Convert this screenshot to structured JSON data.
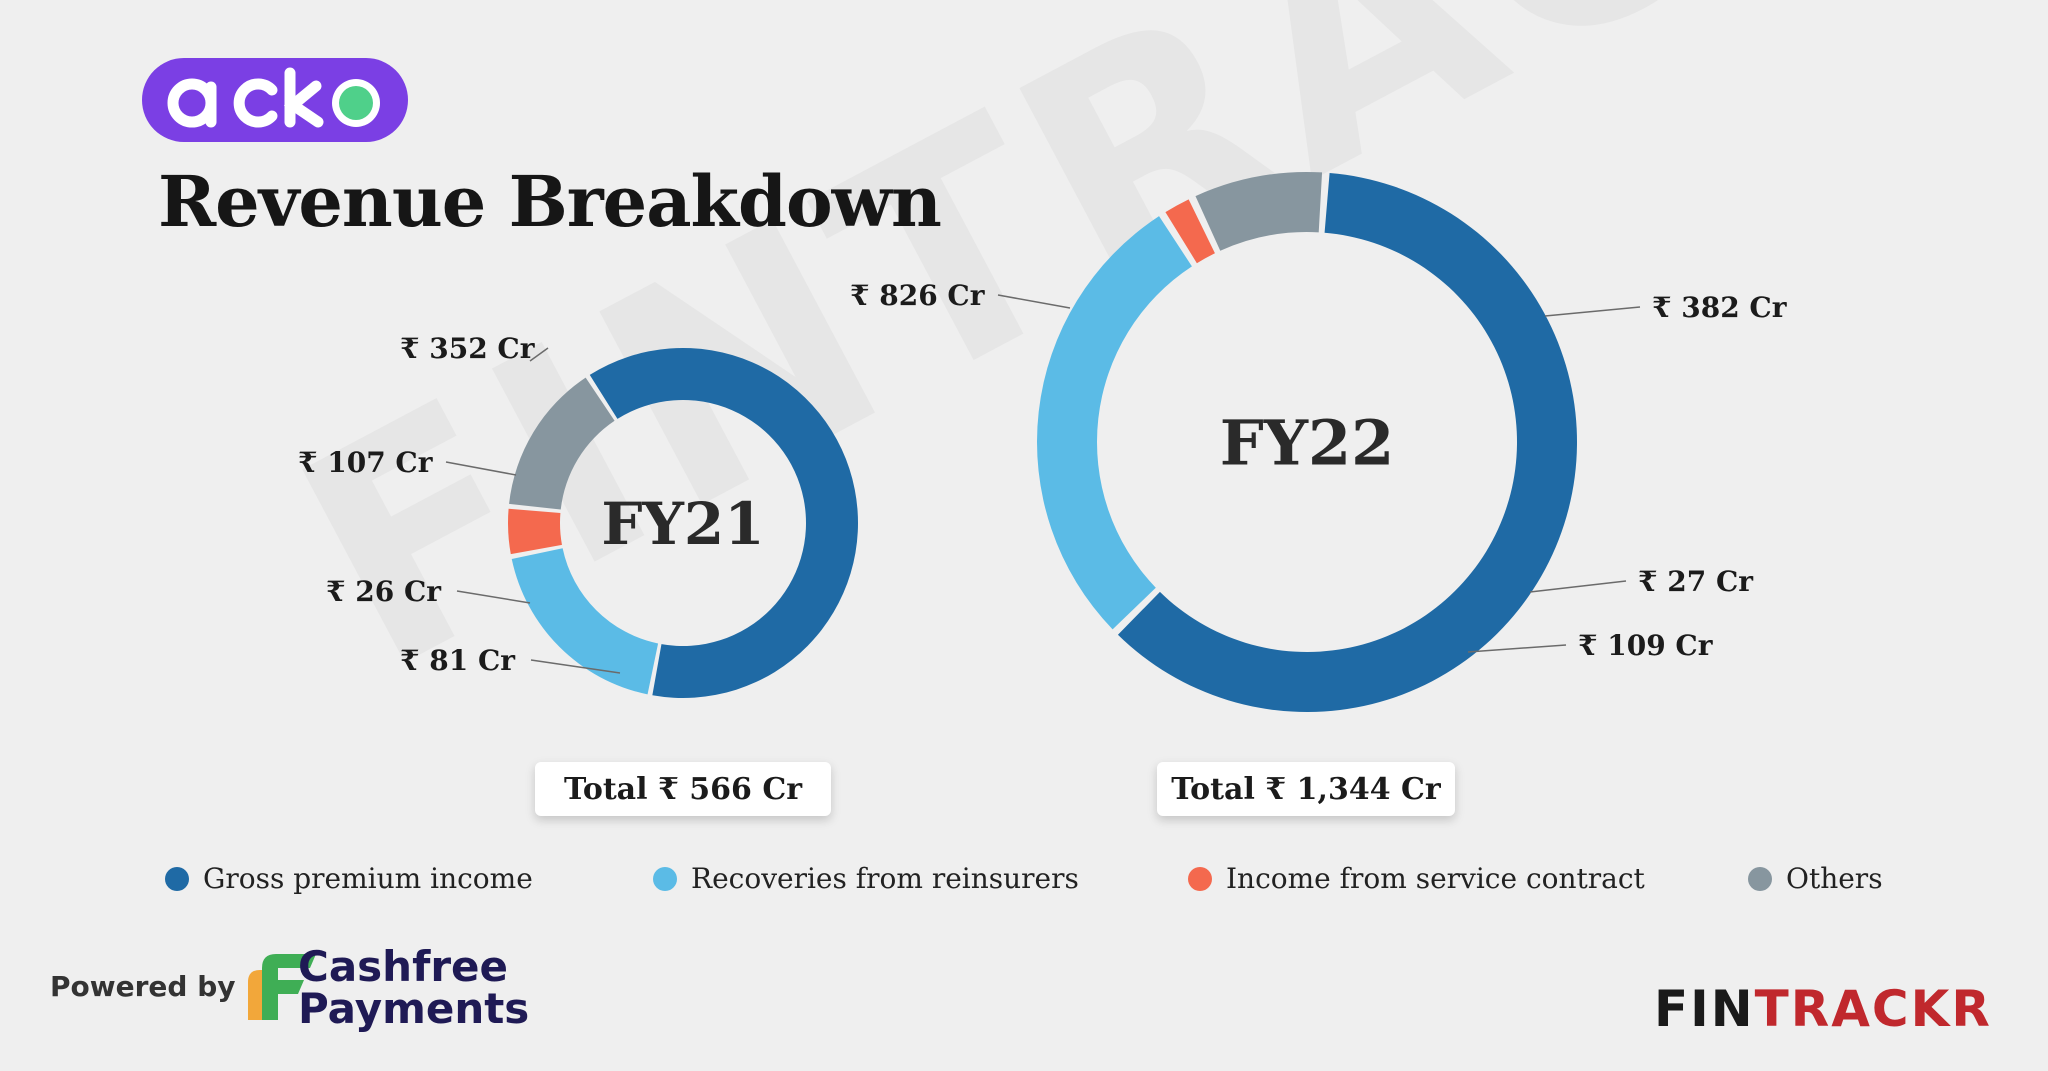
{
  "watermark": "FINTRACKR",
  "brand": {
    "name": "acko"
  },
  "title": "Revenue Breakdown",
  "chart_data": [
    {
      "type": "pie",
      "variant": "donut",
      "center_label": "FY21",
      "categories": [
        "Gross premium income",
        "Recoveries from reinsurers",
        "Income from service contract",
        "Others"
      ],
      "values": [
        352,
        107,
        26,
        81
      ],
      "data_labels": [
        "₹ 352 Cr",
        "₹ 107 Cr",
        "₹ 26 Cr",
        "₹ 81 Cr"
      ],
      "total_label": "Total ₹ 566 Cr"
    },
    {
      "type": "pie",
      "variant": "donut",
      "center_label": "FY22",
      "categories": [
        "Gross premium income",
        "Recoveries from reinsurers",
        "Income from service contract",
        "Others"
      ],
      "values": [
        826,
        382,
        27,
        109
      ],
      "data_labels": [
        "₹ 826 Cr",
        "₹ 382 Cr",
        "₹ 27 Cr",
        "₹ 109 Cr"
      ],
      "total_label": "Total ₹ 1,344 Cr"
    }
  ],
  "legend": {
    "placement": "bottom",
    "items": [
      {
        "label": "Gross premium income",
        "color": "#1f6aa5"
      },
      {
        "label": "Recoveries from reinsurers",
        "color": "#5bbbe6"
      },
      {
        "label": "Income from service contract",
        "color": "#f4694e"
      },
      {
        "label": "Others",
        "color": "#87969f"
      }
    ]
  },
  "footer": {
    "powered_by": "Powered by",
    "partner_line1": "Cashfree",
    "partner_line2": "Payments",
    "brand_left": "FIN",
    "brand_right": "TRACKR"
  }
}
